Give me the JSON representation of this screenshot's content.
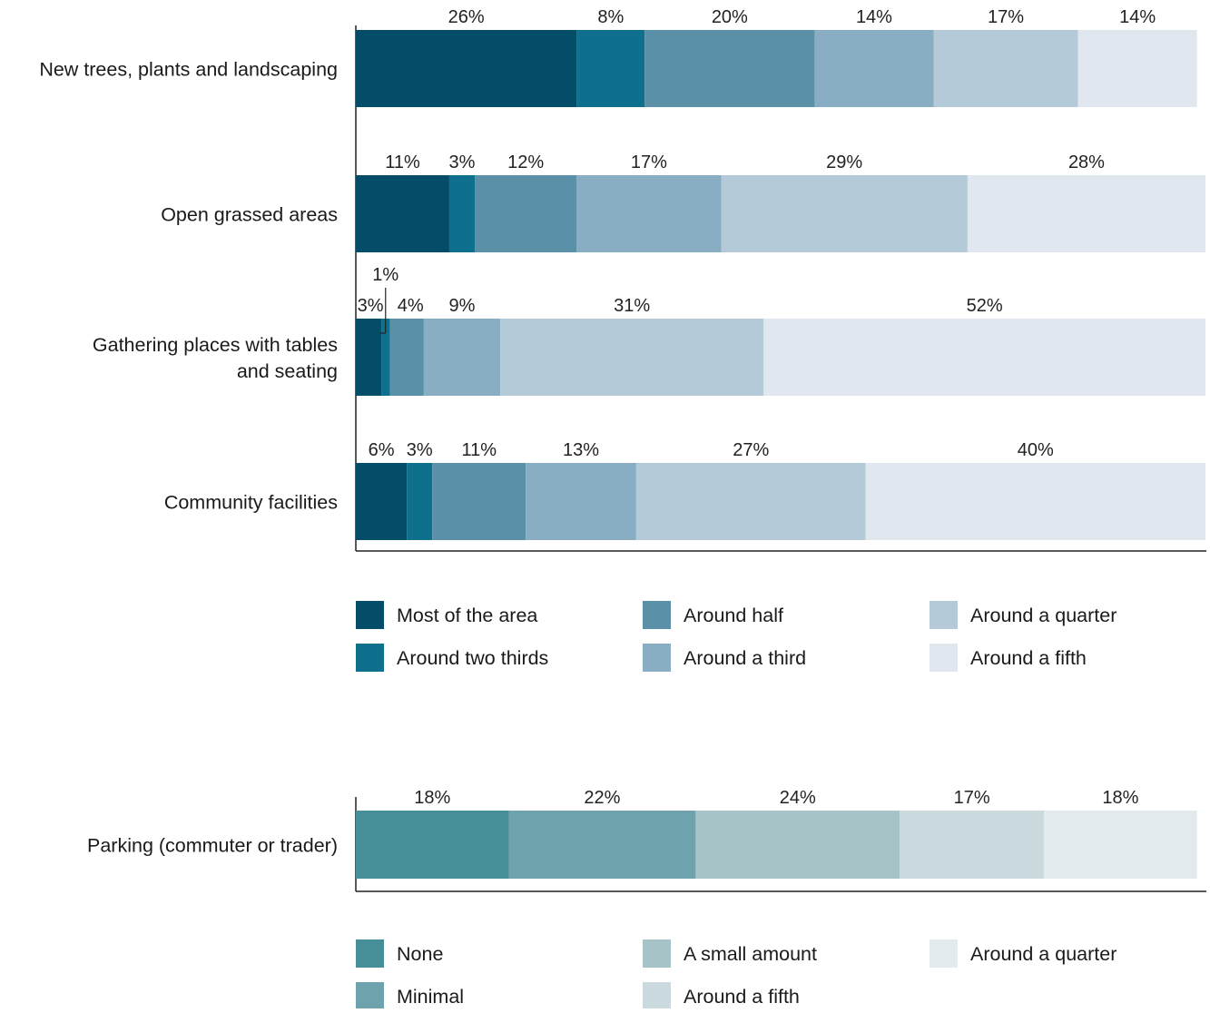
{
  "chart_data": [
    {
      "type": "bar",
      "orientation": "horizontal",
      "stacked": true,
      "categories": [
        "New trees, plants and landscaping",
        "Open grassed areas",
        "Gathering places with tables and seating",
        "Community facilities"
      ],
      "category_lines": [
        [
          "New trees, plants and landscaping"
        ],
        [
          "Open grassed areas"
        ],
        [
          "Gathering places with tables",
          "and seating"
        ],
        [
          "Community facilities"
        ]
      ],
      "series": [
        {
          "name": "Most of the area",
          "color": "#034d69",
          "values": [
            26,
            11,
            3,
            6
          ]
        },
        {
          "name": "Around two thirds",
          "color": "#0e708d",
          "values": [
            8,
            3,
            1,
            3
          ]
        },
        {
          "name": "Around half",
          "color": "#5a90a8",
          "values": [
            20,
            12,
            4,
            11
          ]
        },
        {
          "name": "Around a third",
          "color": "#89adc2",
          "values": [
            14,
            17,
            9,
            13
          ]
        },
        {
          "name": "Around a quarter",
          "color": "#b4cad8",
          "values": [
            17,
            29,
            31,
            27
          ]
        },
        {
          "name": "Around a fifth",
          "color": "#e0e7ef",
          "values": [
            14,
            28,
            52,
            40
          ]
        }
      ],
      "data_labels": [
        [
          "26%",
          "8%",
          "20%",
          "14%",
          "17%",
          "14%"
        ],
        [
          "11%",
          "3%",
          "12%",
          "17%",
          "29%",
          "28%"
        ],
        [
          "3%",
          "1%",
          "4%",
          "9%",
          "31%",
          "52%"
        ],
        [
          "6%",
          "3%",
          "11%",
          "13%",
          "27%",
          "40%"
        ]
      ],
      "legend_order": [
        [
          "Most of the area",
          "Around two thirds"
        ],
        [
          "Around half",
          "Around a third"
        ],
        [
          "Around a quarter",
          "Around a fifth"
        ]
      ],
      "legend_position": "bottom",
      "grid": false
    },
    {
      "type": "bar",
      "orientation": "horizontal",
      "stacked": true,
      "categories": [
        "Parking (commuter or trader)"
      ],
      "category_lines": [
        [
          "Parking (commuter or trader)"
        ]
      ],
      "series": [
        {
          "name": "None",
          "color": "#468f99",
          "values": [
            18
          ]
        },
        {
          "name": "Minimal",
          "color": "#6ea2ac",
          "values": [
            22
          ]
        },
        {
          "name": "A small amount",
          "color": "#a6c3c8",
          "values": [
            24
          ]
        },
        {
          "name": "Around a fifth",
          "color": "#cbdadf",
          "values": [
            17
          ]
        },
        {
          "name": "Around a quarter",
          "color": "#e2eaed",
          "values": [
            18
          ]
        }
      ],
      "data_labels": [
        [
          "18%",
          "22%",
          "24%",
          "17%",
          "18%"
        ]
      ],
      "legend_order": [
        [
          "None",
          "Minimal"
        ],
        [
          "A small amount",
          "Around a fifth"
        ],
        [
          "Around a quarter"
        ]
      ],
      "legend_position": "bottom",
      "grid": false
    }
  ]
}
